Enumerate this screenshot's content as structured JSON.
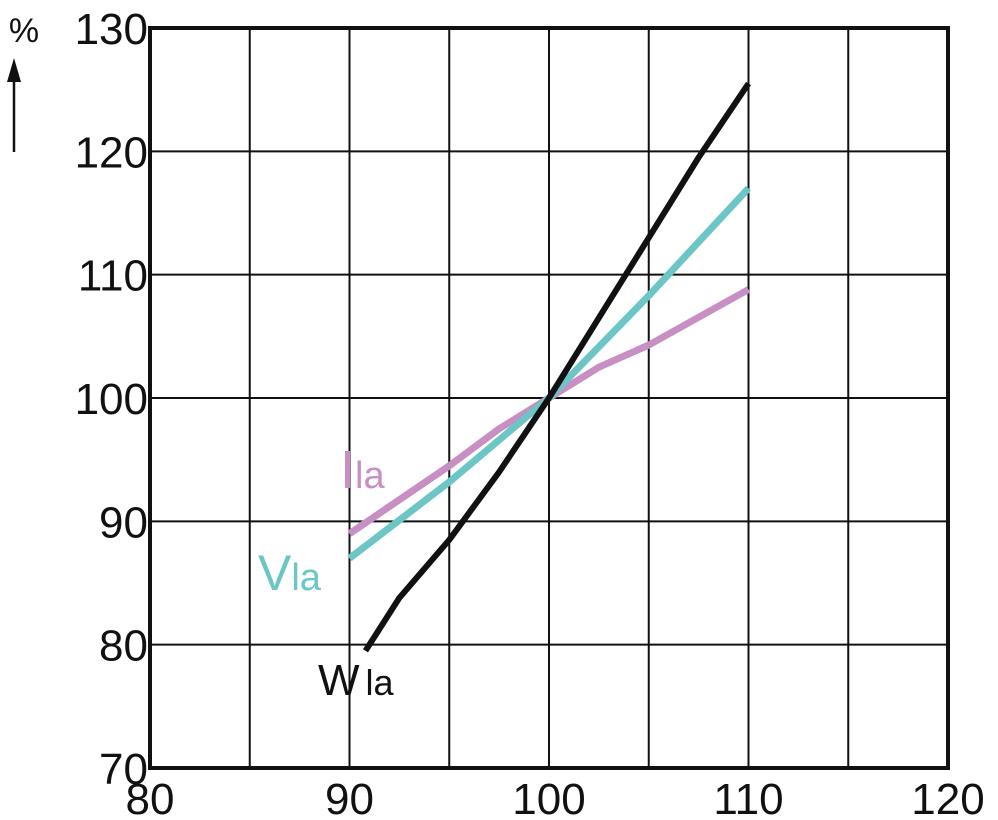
{
  "chart_data": {
    "type": "line",
    "title": "",
    "ylabel": "%",
    "xlabel": "",
    "xlim": [
      80,
      120
    ],
    "ylim": [
      70,
      130
    ],
    "x_ticks": [
      80,
      90,
      100,
      110,
      120
    ],
    "y_ticks": [
      70,
      80,
      90,
      100,
      110,
      120,
      130
    ],
    "grid": true,
    "series": [
      {
        "name": "I",
        "subscript": "la",
        "color": "#c78fc3",
        "x": [
          90,
          95,
          97.5,
          100,
          102.5,
          105,
          110
        ],
        "y": [
          89,
          94.5,
          97.5,
          100,
          102.5,
          104.3,
          108.8
        ]
      },
      {
        "name": "V",
        "subscript": "la",
        "color": "#6cc6c5",
        "x": [
          90,
          95,
          100,
          105,
          110
        ],
        "y": [
          87,
          93.2,
          100,
          108.3,
          117
        ]
      },
      {
        "name": "W",
        "subscript": "la",
        "color": "#111111",
        "x": [
          90.8,
          92.5,
          95,
          97.5,
          100,
          102.5,
          105,
          107.5,
          110
        ],
        "y": [
          79.5,
          83.8,
          88.5,
          94,
          100,
          106.5,
          113,
          119.5,
          125.5
        ]
      }
    ]
  }
}
